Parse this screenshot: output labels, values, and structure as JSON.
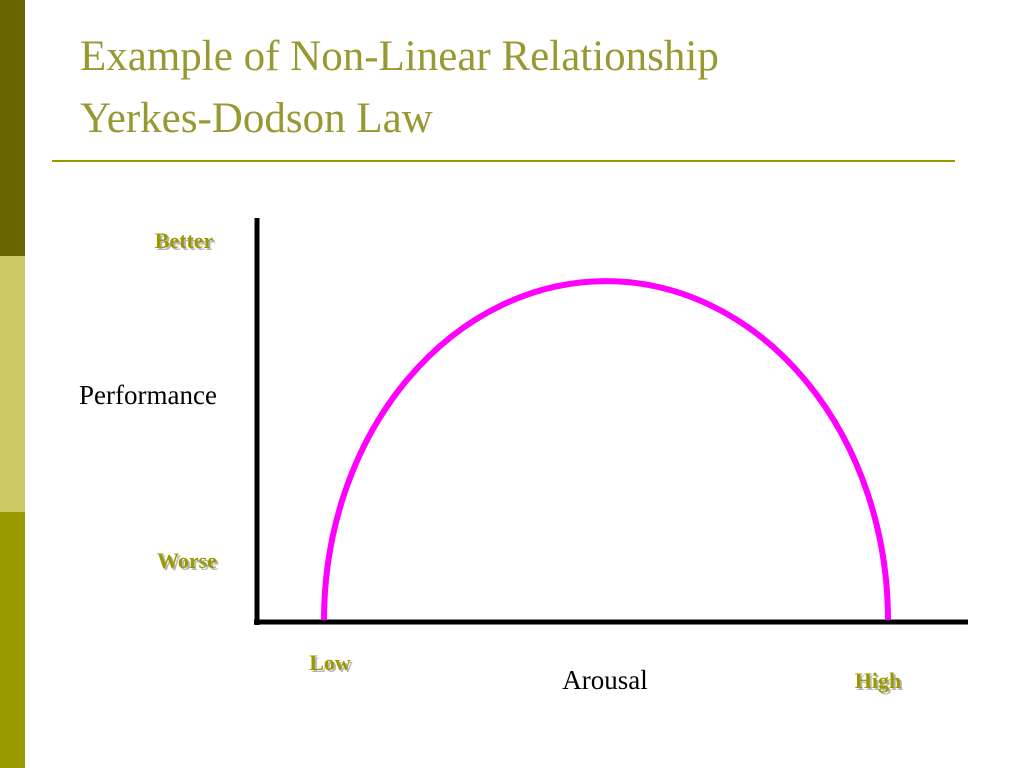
{
  "header": {
    "title": [
      "Example of Non-Linear Relationship",
      "Yerkes-Dodson Law"
    ]
  },
  "diagram": {
    "y_axis": {
      "label": "Performance",
      "top": "Better",
      "bottom": "Worse"
    },
    "x_axis": {
      "label": "Arousal",
      "left": "Low",
      "right": "High"
    }
  }
}
